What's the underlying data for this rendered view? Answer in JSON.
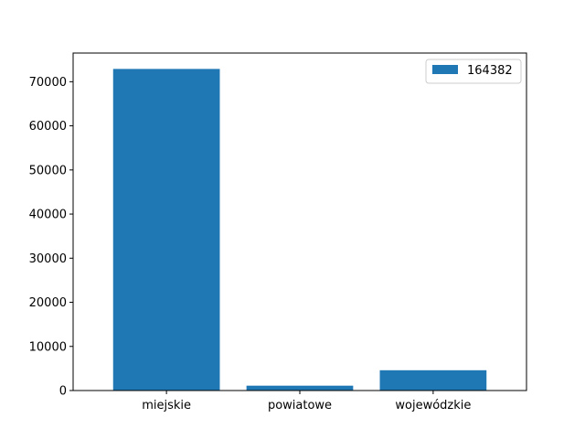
{
  "chart_data": {
    "type": "bar",
    "categories": [
      "miejskie",
      "powiatowe",
      "wojewódzkie"
    ],
    "series": [
      {
        "name": "164382",
        "values": [
          72900,
          1100,
          4600
        ]
      }
    ],
    "ylim": [
      0,
      76500
    ],
    "yticks": [
      0,
      10000,
      20000,
      30000,
      40000,
      50000,
      60000,
      70000
    ],
    "ytick_labels": [
      "0",
      "10000",
      "20000",
      "30000",
      "40000",
      "50000",
      "60000",
      "70000"
    ],
    "grid": false,
    "legend_position": "top-right",
    "bar_color": "#1f77b4"
  }
}
